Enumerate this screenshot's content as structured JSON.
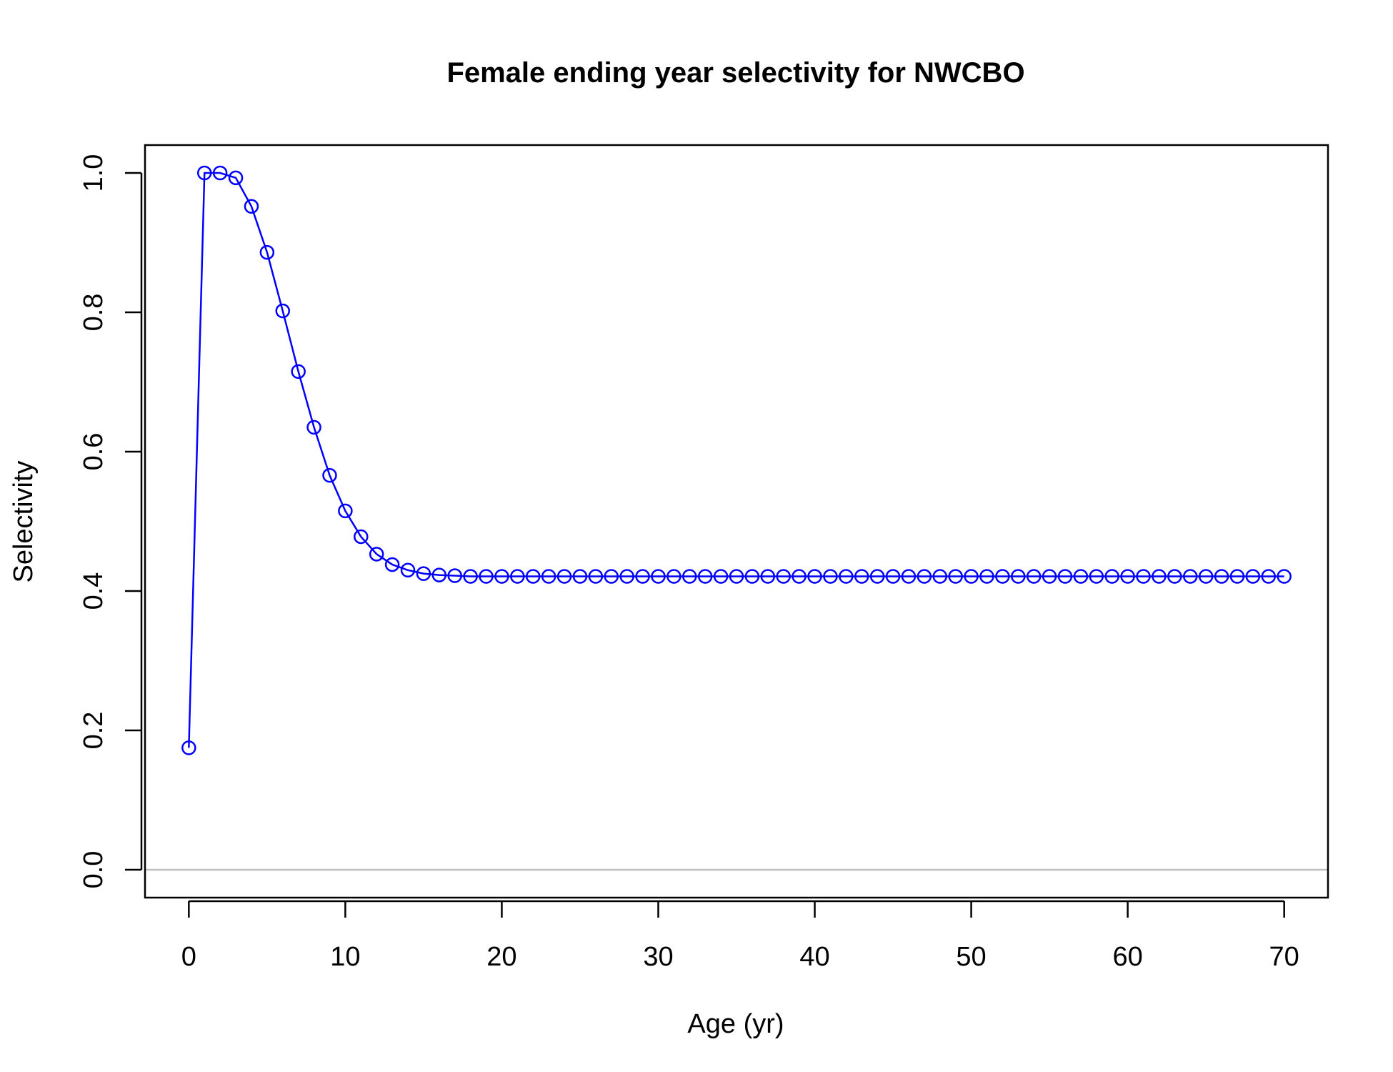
{
  "chart_data": {
    "type": "line",
    "title": "Female ending year selectivity for NWCBO",
    "xlabel": "Age (yr)",
    "ylabel": "Selectivity",
    "xlim": [
      -2.8,
      72.8
    ],
    "ylim": [
      -0.04,
      1.04
    ],
    "xticks": [
      0,
      10,
      20,
      30,
      40,
      50,
      60,
      70
    ],
    "yticks": [
      0.0,
      0.2,
      0.4,
      0.6,
      0.8,
      1.0
    ],
    "xtick_labels": [
      "0",
      "10",
      "20",
      "30",
      "40",
      "50",
      "60",
      "70"
    ],
    "ytick_labels": [
      "0.0",
      "0.2",
      "0.4",
      "0.6",
      "0.8",
      "1.0"
    ],
    "reference_line": {
      "y": 0,
      "color": "#bebebe"
    },
    "series": [
      {
        "color": "#0000ff",
        "marker": "open-circle",
        "x": [
          0,
          1,
          2,
          3,
          4,
          5,
          6,
          7,
          8,
          9,
          10,
          11,
          12,
          13,
          14,
          15,
          16,
          17,
          18,
          19,
          20,
          21,
          22,
          23,
          24,
          25,
          26,
          27,
          28,
          29,
          30,
          31,
          32,
          33,
          34,
          35,
          36,
          37,
          38,
          39,
          40,
          41,
          42,
          43,
          44,
          45,
          46,
          47,
          48,
          49,
          50,
          51,
          52,
          53,
          54,
          55,
          56,
          57,
          58,
          59,
          60,
          61,
          62,
          63,
          64,
          65,
          66,
          67,
          68,
          69,
          70
        ],
        "y": [
          0.175,
          1.0,
          1.0,
          0.993,
          0.952,
          0.886,
          0.802,
          0.715,
          0.635,
          0.566,
          0.515,
          0.478,
          0.453,
          0.438,
          0.43,
          0.425,
          0.423,
          0.422,
          0.421,
          0.421,
          0.421,
          0.421,
          0.421,
          0.421,
          0.421,
          0.421,
          0.421,
          0.421,
          0.421,
          0.421,
          0.421,
          0.421,
          0.421,
          0.421,
          0.421,
          0.421,
          0.421,
          0.421,
          0.421,
          0.421,
          0.421,
          0.421,
          0.421,
          0.421,
          0.421,
          0.421,
          0.421,
          0.421,
          0.421,
          0.421,
          0.421,
          0.421,
          0.421,
          0.421,
          0.421,
          0.421,
          0.421,
          0.421,
          0.421,
          0.421,
          0.421,
          0.421,
          0.421,
          0.421,
          0.421,
          0.421,
          0.421,
          0.421,
          0.421,
          0.421,
          0.421
        ]
      }
    ]
  }
}
